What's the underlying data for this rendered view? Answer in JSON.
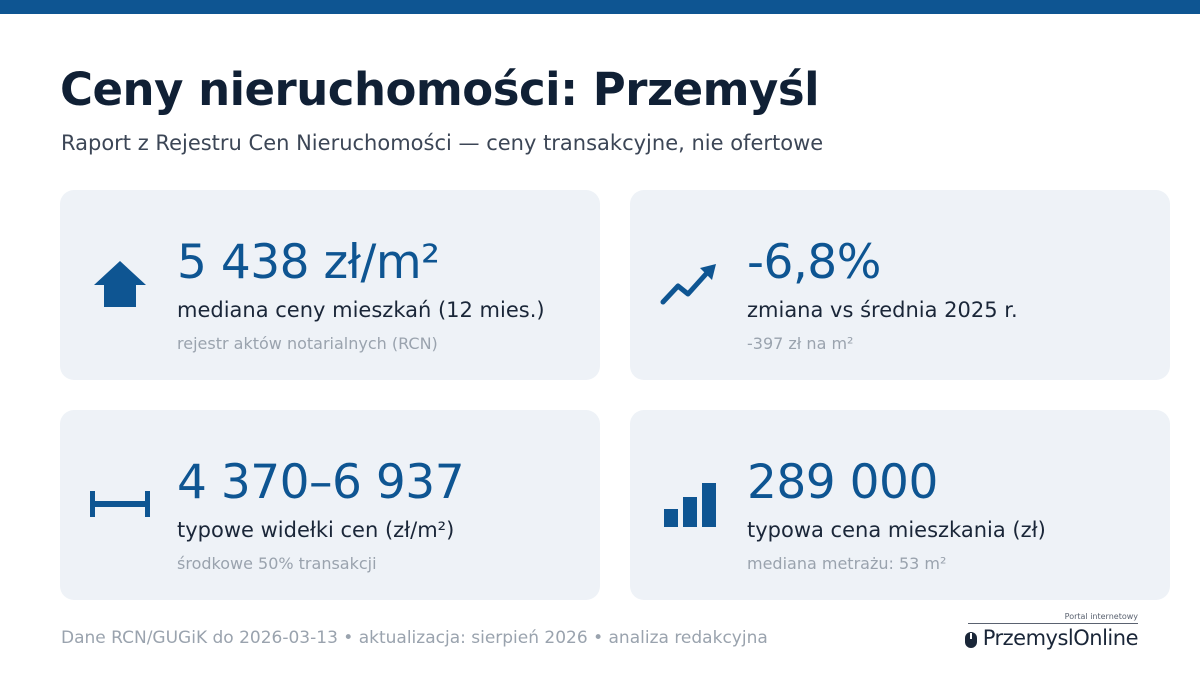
{
  "header": {
    "title": "Ceny nieruchomości: Przemyśl",
    "subtitle": "Raport z Rejestru Cen Nieruchomości — ceny transakcyjne, nie ofertowe"
  },
  "cards": [
    {
      "icon": "house-arrow-icon",
      "value": "5 438 zł/m²",
      "label": "mediana ceny mieszkań (12 mies.)",
      "note": "rejestr aktów notarialnych (RCN)"
    },
    {
      "icon": "trend-up-icon",
      "value": "-6,8%",
      "label": "zmiana vs średnia 2025 r.",
      "note": "-397 zł na m²"
    },
    {
      "icon": "range-icon",
      "value": "4 370–6 937",
      "label": "typowe widełki cen (zł/m²)",
      "note": "środkowe 50% transakcji"
    },
    {
      "icon": "bar-chart-icon",
      "value": "289 000",
      "label": "typowa cena mieszkania (zł)",
      "note": "mediana metrażu: 53 m²"
    }
  ],
  "footer": {
    "source": "Dane RCN/GUGiK do 2026-03-13 • aktualizacja: sierpień 2026 • analiza redakcyjna"
  },
  "logo": {
    "tagline": "Portal internetowy",
    "word1": "Przemysl",
    "word2": "Online"
  },
  "colors": {
    "accent": "#0e5592",
    "card_bg": "#eef2f7",
    "title": "#102035",
    "muted": "#9aa3ae"
  }
}
